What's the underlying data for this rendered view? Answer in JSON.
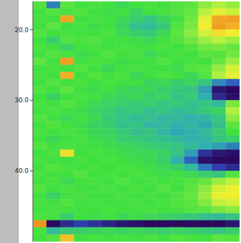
{
  "chart_data": {
    "type": "heatmap",
    "tick_labels": "y",
    "grid": false,
    "xlim": [
      0,
      15
    ],
    "ylim": [
      16,
      50
    ],
    "yticks": [
      {
        "value": 20,
        "label": "20.0"
      },
      {
        "value": 30,
        "label": "30.0"
      },
      {
        "value": 40,
        "label": "40.0"
      }
    ],
    "x_edges": [
      0,
      1,
      2,
      3,
      4,
      5,
      6,
      7,
      8,
      9,
      10,
      11,
      12,
      13,
      14,
      15
    ],
    "y_edges": [
      16,
      17,
      18,
      19,
      20,
      21,
      22,
      23,
      24,
      25,
      26,
      27,
      28,
      29,
      30,
      31,
      32,
      33,
      34,
      35,
      36,
      37,
      38,
      39,
      40,
      41,
      42,
      43,
      44,
      45,
      46,
      47,
      48,
      49,
      50
    ],
    "crange": [
      -3,
      3
    ],
    "cells": [
      [
        0.2,
        -1.5,
        0.3,
        0,
        0.1,
        0,
        -0.2,
        0,
        0.1,
        0,
        0.2,
        0.3,
        0.8,
        1.2,
        0.9
      ],
      [
        0,
        0.2,
        0.1,
        0.2,
        0,
        -0.1,
        0,
        -0.3,
        0,
        0.1,
        0.2,
        0.4,
        1.3,
        1.8,
        1.5
      ],
      [
        0.1,
        0,
        2.8,
        0,
        0.1,
        0,
        -0.2,
        -0.4,
        -0.6,
        -0.3,
        0,
        0.5,
        1.8,
        2.8,
        2.9
      ],
      [
        0,
        0.3,
        0,
        0.1,
        -0.1,
        0,
        -0.3,
        -0.7,
        -0.8,
        -0.5,
        0.2,
        0.6,
        2,
        2.9,
        2.7
      ],
      [
        0.2,
        0,
        0.1,
        0,
        0,
        0.1,
        -0.2,
        -0.4,
        -0.5,
        -0.2,
        0.3,
        0.8,
        1.6,
        2.2,
        2
      ],
      [
        0,
        -0.4,
        0.2,
        0.1,
        0.2,
        0,
        0,
        -0.1,
        -0.2,
        0,
        0.2,
        0.5,
        1,
        1.3,
        1
      ],
      [
        0.1,
        0,
        -0.3,
        0,
        0.1,
        0,
        0.1,
        0,
        0,
        0.1,
        0,
        0.2,
        0.5,
        0.6,
        0.4
      ],
      [
        0,
        0.2,
        0.1,
        -0.1,
        0,
        0.2,
        0,
        0.1,
        -0.2,
        0,
        0.1,
        0,
        0.3,
        0.2,
        0.5
      ],
      [
        0.3,
        0,
        2.9,
        0,
        0.1,
        0,
        -0.1,
        0,
        0,
        0.2,
        0,
        0.1,
        0,
        0.4,
        1
      ],
      [
        0,
        0.1,
        0,
        0.2,
        0,
        -0.2,
        0,
        0.1,
        0,
        0,
        -0.1,
        0.2,
        0.3,
        0.9,
        1.6
      ],
      [
        0.1,
        0,
        2.7,
        0,
        0.2,
        0,
        0.1,
        -0.2,
        0,
        0.1,
        0,
        -0.2,
        0.2,
        1.2,
        1.8
      ],
      [
        0,
        0.2,
        0,
        0.1,
        0,
        0.1,
        0,
        0,
        -0.3,
        -0.2,
        -0.4,
        -0.3,
        -0.6,
        -1.4,
        -1.8
      ],
      [
        0.2,
        0,
        0.3,
        0,
        -0.1,
        0,
        -0.2,
        -0.3,
        -0.2,
        -0.4,
        -0.5,
        -0.6,
        -1.2,
        -2.8,
        -3
      ],
      [
        0,
        -0.3,
        0,
        0.1,
        0,
        -0.2,
        -0.3,
        -0.2,
        -0.4,
        -0.3,
        -0.6,
        -0.5,
        -1,
        -2.5,
        -2.9
      ],
      [
        0.1,
        0,
        0.2,
        0,
        -0.2,
        -0.3,
        -0.4,
        -0.5,
        -0.4,
        -0.6,
        -0.5,
        -0.7,
        -0.6,
        -0.8,
        0.6
      ],
      [
        0,
        0.1,
        0,
        -0.1,
        -0.3,
        -0.4,
        -0.6,
        -0.5,
        -0.7,
        -0.6,
        -0.8,
        -0.7,
        -0.5,
        -0.3,
        1.2
      ],
      [
        0.2,
        0,
        -0.2,
        0,
        -0.2,
        -0.5,
        -0.6,
        -0.8,
        -0.7,
        -0.9,
        -0.8,
        -1,
        -0.9,
        -0.6,
        0.8
      ],
      [
        0,
        0.2,
        0,
        -0.1,
        -0.3,
        -0.4,
        -0.7,
        -0.6,
        -0.9,
        -0.8,
        -1,
        -0.9,
        -1.1,
        -0.7,
        0.3
      ],
      [
        0.1,
        0,
        0.1,
        0,
        -0.2,
        -0.3,
        -0.5,
        -0.7,
        -0.6,
        -0.9,
        -1.1,
        -1,
        -0.8,
        -0.5,
        0
      ],
      [
        0,
        -0.2,
        0,
        0.1,
        -0.1,
        -0.2,
        -0.4,
        -0.5,
        -0.6,
        -0.7,
        -0.8,
        -1,
        -0.9,
        -0.6,
        -0.4
      ],
      [
        0.2,
        0,
        0.1,
        0,
        0,
        -0.1,
        -0.2,
        -0.3,
        -0.4,
        -0.5,
        -0.6,
        -0.8,
        -1,
        -1.2,
        -1.5
      ],
      [
        0,
        0.1,
        2.2,
        0,
        0.1,
        0,
        -0.1,
        -0.2,
        -0.2,
        -0.3,
        -0.6,
        -1.2,
        -2.4,
        -2.8,
        -2.9
      ],
      [
        0.1,
        0,
        0,
        0.1,
        0,
        0.1,
        0,
        -0.1,
        -0.2,
        -0.4,
        -1,
        -1.8,
        -2.9,
        -3,
        -3
      ],
      [
        0,
        0.2,
        0.1,
        0,
        0.1,
        0,
        0.1,
        0,
        -0.1,
        -0.2,
        -0.4,
        -0.8,
        -1.6,
        -2.2,
        -2.5
      ],
      [
        0.1,
        0,
        0,
        0.2,
        0,
        0.1,
        0,
        0.1,
        0,
        -0.1,
        0,
        -0.2,
        -0.4,
        -0.5,
        0.2
      ],
      [
        0,
        0.1,
        -0.2,
        0,
        0.1,
        0,
        0.2,
        0,
        0.1,
        0,
        0.1,
        0.2,
        0.4,
        1,
        1.4
      ],
      [
        0.2,
        0,
        0.1,
        0,
        0,
        0.1,
        0,
        0.1,
        0,
        0.2,
        0,
        0.3,
        0.8,
        1.6,
        1.9
      ],
      [
        0,
        -0.3,
        0,
        0.1,
        0,
        0,
        0.1,
        0,
        0.1,
        0,
        0.2,
        0.4,
        1,
        1.9,
        2
      ],
      [
        0.1,
        0,
        0.2,
        0,
        0.1,
        0,
        0,
        0.1,
        0,
        0.1,
        0.2,
        0.3,
        0.7,
        1.4,
        1.6
      ],
      [
        0,
        0.1,
        0,
        0,
        0,
        0.1,
        0,
        0,
        0.1,
        0,
        0.1,
        0.2,
        0.3,
        0.6,
        0.8
      ],
      [
        0.1,
        0,
        -0.4,
        0,
        -0.1,
        0,
        -0.2,
        -0.1,
        -0.2,
        -0.3,
        -0.4,
        -0.5,
        -0.7,
        -0.8,
        -0.6
      ],
      [
        3,
        -3,
        -2.5,
        -2.2,
        -2.4,
        -2.6,
        -2.8,
        -2.9,
        -3,
        -3,
        -3,
        -3,
        -3,
        -3,
        -2.8
      ],
      [
        0.1,
        -0.8,
        -0.5,
        -0.4,
        -0.3,
        -0.2,
        -0.3,
        -0.2,
        -0.3,
        -0.4,
        -0.3,
        -0.4,
        -0.5,
        -0.6,
        -0.4
      ],
      [
        0,
        0.2,
        2.5,
        0,
        0.1,
        0,
        0.1,
        0,
        0.1,
        0,
        0.2,
        0.1,
        0,
        0.3,
        0.2
      ]
    ]
  }
}
